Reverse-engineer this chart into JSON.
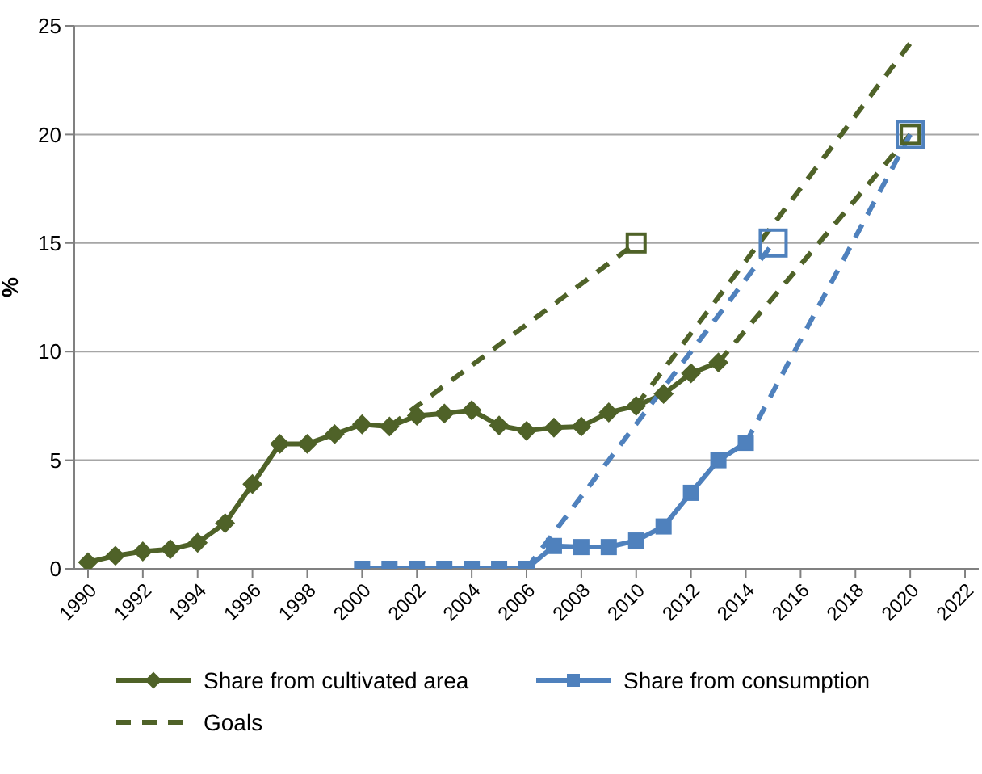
{
  "chart_data": {
    "type": "line",
    "ylabel": "%",
    "xlim": [
      1989.5,
      2022.5
    ],
    "xticks": [
      1990,
      1992,
      1994,
      1996,
      1998,
      2000,
      2002,
      2004,
      2006,
      2008,
      2010,
      2012,
      2014,
      2016,
      2018,
      2020,
      2022
    ],
    "ylim": [
      0,
      25
    ],
    "yticks": [
      0,
      5,
      10,
      15,
      20,
      25
    ],
    "grid": "y",
    "legend": "bottom",
    "series": [
      {
        "name": "Share from cultivated area",
        "color": "#4f6228",
        "marker": "diamond",
        "line_style": "solid",
        "x": [
          1990,
          1991,
          1992,
          1993,
          1994,
          1995,
          1996,
          1997,
          1998,
          1999,
          2000,
          2001,
          2002,
          2003,
          2004,
          2005,
          2006,
          2007,
          2008,
          2009,
          2010,
          2011,
          2012,
          2013
        ],
        "values": [
          0.3,
          0.6,
          0.8,
          0.9,
          1.2,
          2.1,
          3.9,
          5.75,
          5.75,
          6.2,
          6.65,
          6.55,
          7.05,
          7.15,
          7.3,
          6.6,
          6.35,
          6.5,
          6.55,
          7.2,
          7.5,
          8.05,
          9.0,
          9.5
        ]
      },
      {
        "name": "Share from consumption",
        "color": "#4f81bd",
        "marker": "square",
        "line_style": "solid",
        "x": [
          2000,
          2001,
          2002,
          2003,
          2004,
          2005,
          2006,
          2007,
          2008,
          2009,
          2010,
          2011,
          2012,
          2013,
          2014
        ],
        "values": [
          0,
          0,
          0,
          0,
          0,
          0,
          0,
          1.05,
          1.0,
          1.0,
          1.3,
          1.95,
          3.5,
          5.0,
          5.8
        ]
      },
      {
        "name": "Goals",
        "color": "#4f6228",
        "marker": "none",
        "line_style": "dashed",
        "x": [
          2001,
          2010
        ],
        "values": [
          6.55,
          15
        ]
      },
      {
        "color": "#4f6228",
        "marker": "none",
        "line_style": "dashed",
        "x": [
          2010,
          2020
        ],
        "values": [
          7.5,
          24.2
        ]
      },
      {
        "color": "#4f6228",
        "marker": "none",
        "line_style": "dashed",
        "x": [
          2013,
          2020
        ],
        "values": [
          9.5,
          20
        ]
      },
      {
        "color": "#4f81bd",
        "marker": "none",
        "line_style": "dashed",
        "x": [
          2006,
          2015
        ],
        "values": [
          0,
          15
        ]
      },
      {
        "color": "#4f81bd",
        "marker": "none",
        "line_style": "dashed",
        "x": [
          2014,
          2020
        ],
        "values": [
          5.8,
          20
        ]
      },
      {
        "type": "scatter",
        "color": "#4f81bd",
        "marker": "square",
        "x": [
          2015,
          2020
        ],
        "values": [
          15,
          20
        ]
      },
      {
        "type": "scatter",
        "color": "#4f6228",
        "marker": "square",
        "x": [
          2010,
          2020
        ],
        "values": [
          15,
          20
        ]
      }
    ]
  }
}
